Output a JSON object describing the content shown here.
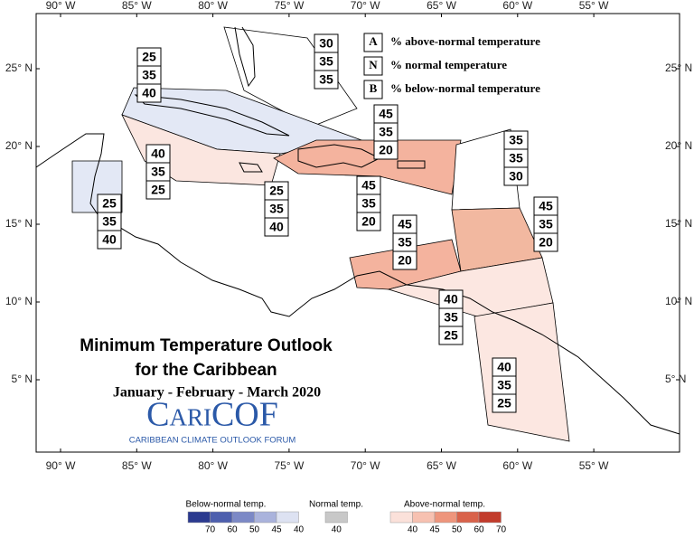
{
  "axes": {
    "longitudes": [
      "90° W",
      "85° W",
      "80° W",
      "75° W",
      "70° W",
      "65° W",
      "60° W",
      "55° W"
    ],
    "latitudes": [
      "25° N",
      "20° N",
      "15° N",
      "10° N",
      "5° N"
    ]
  },
  "key": [
    {
      "letter": "A",
      "text": "% above-normal temperature"
    },
    {
      "letter": "N",
      "text": "% normal temperature"
    },
    {
      "letter": "B",
      "text": "% below-normal temperature"
    }
  ],
  "regions": [
    {
      "above": 30,
      "normal": 35,
      "below": 35
    },
    {
      "above": 25,
      "normal": 35,
      "below": 40
    },
    {
      "above": 40,
      "normal": 35,
      "below": 25
    },
    {
      "above": 25,
      "normal": 35,
      "below": 40
    },
    {
      "above": 25,
      "normal": 35,
      "below": 40
    },
    {
      "above": 45,
      "normal": 35,
      "below": 20
    },
    {
      "above": 45,
      "normal": 35,
      "below": 20
    },
    {
      "above": 35,
      "normal": 35,
      "below": 30
    },
    {
      "above": 45,
      "normal": 35,
      "below": 20
    },
    {
      "above": 45,
      "normal": 35,
      "below": 20
    },
    {
      "above": 40,
      "normal": 35,
      "below": 25
    },
    {
      "above": 40,
      "normal": 35,
      "below": 25
    }
  ],
  "title": {
    "line1": "Minimum Temperature Outlook",
    "line2": "for the Caribbean",
    "period": "January - February - March 2020"
  },
  "logo": {
    "name": "CariCOF",
    "tagline": "CARIBBEAN CLIMATE OUTLOOK FORUM"
  },
  "legend": {
    "below": {
      "label": "Below-normal temp.",
      "ticks": [
        70,
        60,
        50,
        45,
        40
      ],
      "colors": [
        "#2b3a8f",
        "#4d5fae",
        "#7c89c6",
        "#aab3dc",
        "#dde2f2"
      ]
    },
    "normal": {
      "label": "Normal temp.",
      "ticks": [
        40
      ],
      "colors": [
        "#c8c8c8"
      ]
    },
    "above": {
      "label": "Above-normal temp.",
      "ticks": [
        40,
        45,
        50,
        60,
        70
      ],
      "colors": [
        "#fbe1da",
        "#f7c1b1",
        "#ee957c",
        "#d9624a",
        "#c23b2b"
      ]
    }
  }
}
